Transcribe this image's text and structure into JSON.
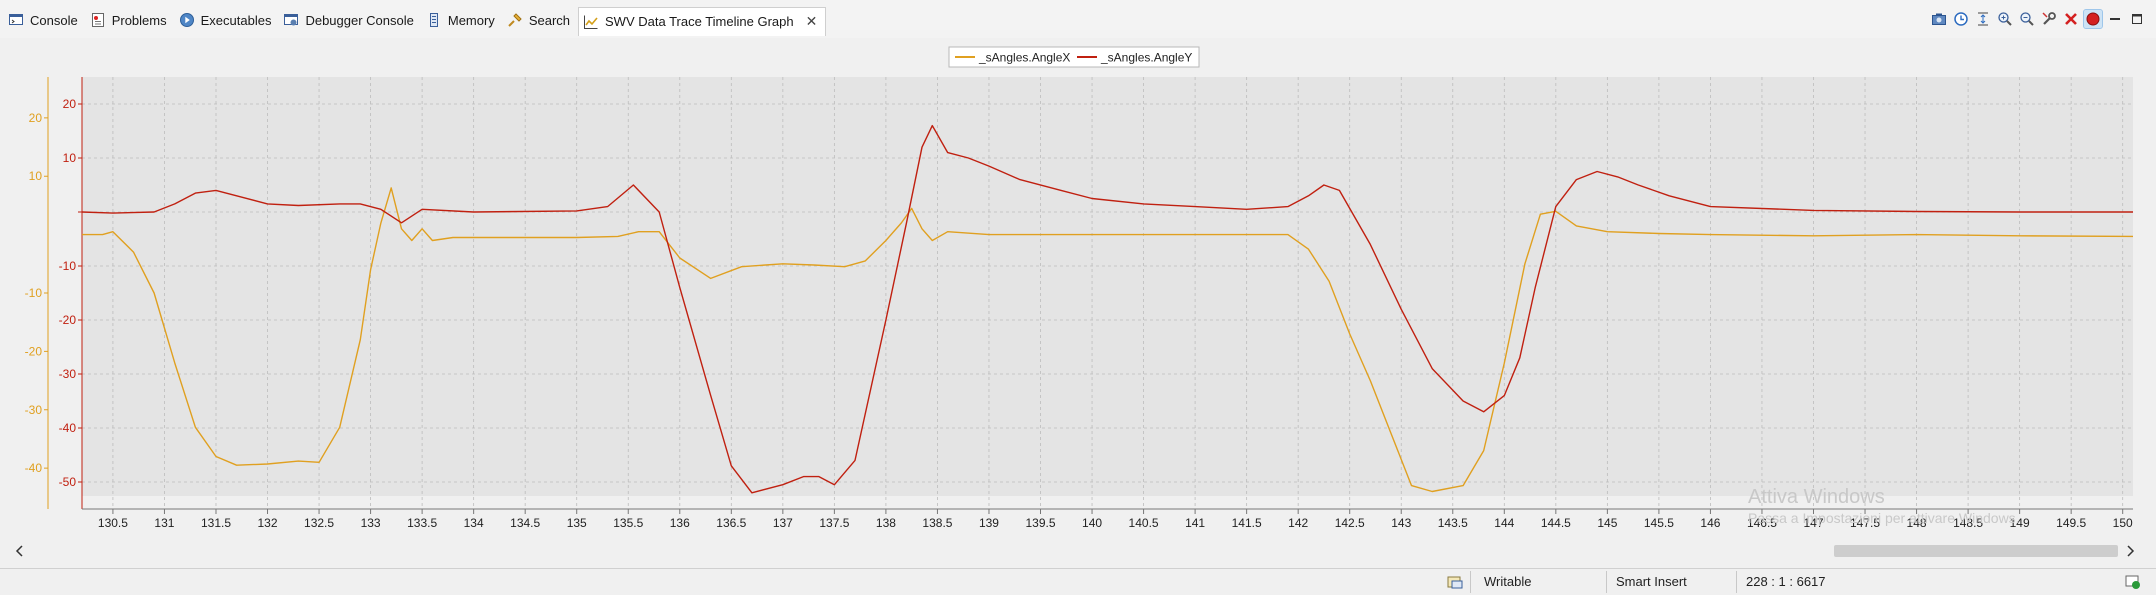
{
  "tabs": [
    {
      "label": "Console",
      "icon": "console-icon"
    },
    {
      "label": "Problems",
      "icon": "problems-icon"
    },
    {
      "label": "Executables",
      "icon": "executables-icon"
    },
    {
      "label": "Debugger Console",
      "icon": "debugger-console-icon"
    },
    {
      "label": "Memory",
      "icon": "memory-icon"
    },
    {
      "label": "Search",
      "icon": "search-icon"
    },
    {
      "label": "SWV Data Trace Timeline Graph",
      "icon": "timeline-graph-icon",
      "active": true
    }
  ],
  "toolbar_icons": [
    "export-icon",
    "clock-icon",
    "fit-vertical-icon",
    "zoom-in-icon",
    "zoom-out-icon",
    "settings-icon",
    "clear-icon",
    "record-icon",
    "minimize-icon",
    "maximize-icon"
  ],
  "colors": {
    "angle_x": "#e0a020",
    "angle_y": "#c02010",
    "plot_bg": "#e4e4e4",
    "grid": "#bcbcbc"
  },
  "chart_data": {
    "type": "line",
    "legend_position": "top-center",
    "grid": true,
    "xlim": [
      130.2,
      150.1
    ],
    "x_ticks": [
      130.5,
      131,
      131.5,
      132,
      132.5,
      133,
      133.5,
      134,
      134.5,
      135,
      135.5,
      136,
      136.5,
      137,
      137.5,
      138,
      138.5,
      139,
      139.5,
      140,
      140.5,
      141,
      141.5,
      142,
      142.5,
      143,
      143.5,
      144,
      144.5,
      145,
      145.5,
      146,
      146.5,
      147,
      147.5,
      148,
      148.5,
      149,
      149.5,
      150
    ],
    "y_axes": [
      {
        "series": "_sAngles.AngleY",
        "ticks": [
          20,
          10,
          0,
          -10,
          -20,
          -30,
          -40,
          -50
        ],
        "tick_labels": [
          "20",
          "10",
          "",
          "-10",
          "-20",
          "-30",
          "-40",
          "-50"
        ],
        "ylim": [
          -55,
          25
        ]
      },
      {
        "series": "_sAngles.AngleX",
        "ticks": [
          20,
          10,
          -10,
          -20,
          -30,
          -40
        ],
        "ylim": [
          -47,
          27
        ]
      }
    ],
    "series": [
      {
        "name": "_sAngles.AngleX",
        "axis": 1,
        "x": [
          130.2,
          130.4,
          130.5,
          130.7,
          130.9,
          131.1,
          131.3,
          131.5,
          131.7,
          132.0,
          132.3,
          132.5,
          132.7,
          132.9,
          133.0,
          133.1,
          133.2,
          133.3,
          133.4,
          133.5,
          133.6,
          133.8,
          134.0,
          134.5,
          135.0,
          135.4,
          135.6,
          135.8,
          136.0,
          136.3,
          136.6,
          137.0,
          137.3,
          137.6,
          137.8,
          138.0,
          138.15,
          138.25,
          138.35,
          138.45,
          138.6,
          139.0,
          140.0,
          141.0,
          141.5,
          141.9,
          142.1,
          142.3,
          142.5,
          142.7,
          142.9,
          143.1,
          143.3,
          143.6,
          143.8,
          144.0,
          144.2,
          144.35,
          144.5,
          144.7,
          145.0,
          145.5,
          146.0,
          147.0,
          148.0,
          149.0,
          150.1
        ],
        "y": [
          0,
          0,
          0.5,
          -3,
          -10,
          -22,
          -33,
          -38,
          -39.5,
          -39.3,
          -38.8,
          -39,
          -33,
          -18,
          -6,
          2,
          8,
          1,
          -1,
          1,
          -1,
          -0.5,
          -0.5,
          -0.5,
          -0.5,
          -0.3,
          0.5,
          0.5,
          -4,
          -7.5,
          -5.5,
          -5,
          -5.2,
          -5.5,
          -4.5,
          -1,
          2,
          4.5,
          1,
          -1,
          0.5,
          0,
          0,
          0,
          0,
          0,
          -2.5,
          -8,
          -17,
          -25,
          -34,
          -43,
          -44,
          -43,
          -37,
          -22,
          -5,
          3.5,
          4,
          1.5,
          0.5,
          0.2,
          0,
          -0.2,
          0,
          -0.2,
          -0.3
        ]
      },
      {
        "name": "_sAngles.AngleY",
        "axis": 0,
        "x": [
          130.2,
          130.5,
          130.9,
          131.1,
          131.3,
          131.5,
          131.7,
          132.0,
          132.3,
          132.7,
          132.9,
          133.1,
          133.3,
          133.5,
          134.0,
          135.0,
          135.3,
          135.55,
          135.8,
          136.0,
          136.3,
          136.5,
          136.7,
          137.0,
          137.2,
          137.35,
          137.5,
          137.7,
          138.0,
          138.2,
          138.35,
          138.45,
          138.6,
          138.8,
          139.0,
          139.3,
          139.7,
          140.0,
          140.5,
          141.0,
          141.5,
          141.9,
          142.1,
          142.25,
          142.4,
          142.7,
          143.0,
          143.3,
          143.6,
          143.8,
          144.0,
          144.15,
          144.3,
          144.5,
          144.7,
          144.9,
          145.1,
          145.3,
          145.6,
          146.0,
          147.0,
          148.0,
          149.0,
          150.1
        ],
        "y": [
          0,
          -0.2,
          0,
          1.5,
          3.5,
          4,
          3,
          1.5,
          1.2,
          1.5,
          1.5,
          0.5,
          -2,
          0.5,
          0,
          0.2,
          1,
          5,
          0,
          -14,
          -34,
          -47,
          -52,
          -50.5,
          -49,
          -49,
          -50.5,
          -46,
          -20,
          -2,
          12,
          16,
          11,
          10,
          8.5,
          6,
          4,
          2.5,
          1.5,
          1,
          0.5,
          1,
          3,
          5,
          4,
          -6,
          -18,
          -29,
          -35,
          -37,
          -34,
          -27,
          -14,
          1,
          6,
          7.5,
          6.5,
          5,
          3,
          1,
          0.3,
          0.1,
          0,
          0
        ]
      }
    ]
  },
  "status": {
    "mode": "Writable",
    "insert": "Smart Insert",
    "position": "228 : 1 : 6617"
  },
  "watermark": {
    "title": "Attiva Windows",
    "subtitle": "Passa a Impostazioni per attivare Windows."
  }
}
